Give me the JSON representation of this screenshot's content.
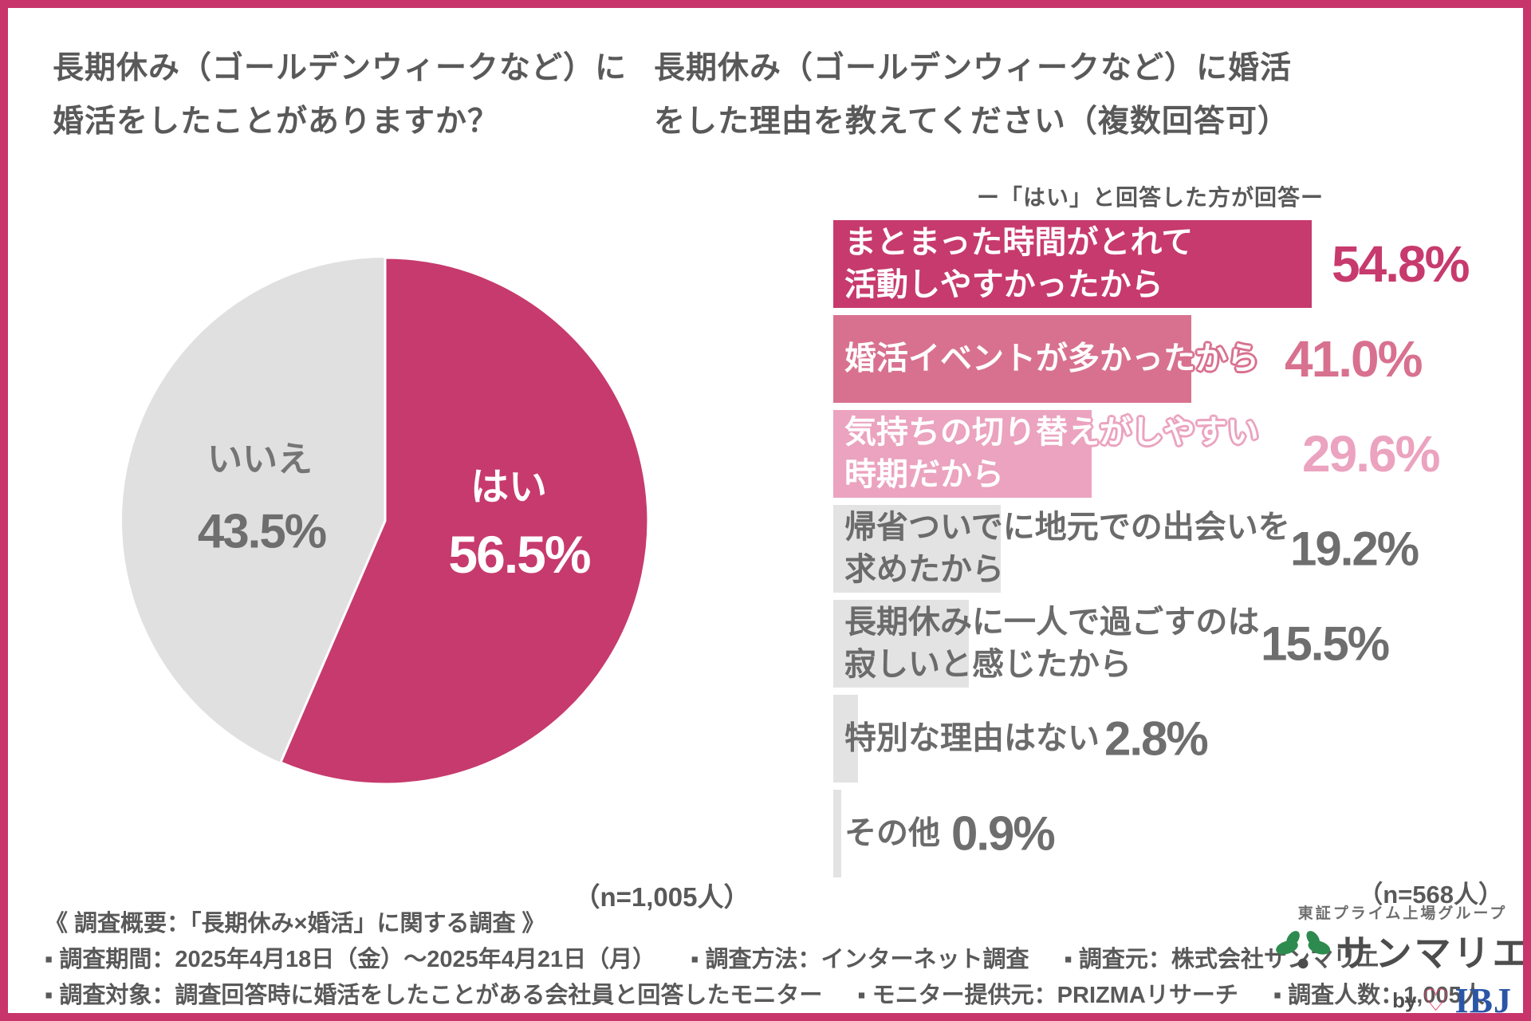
{
  "page": {
    "background": "#ffffff",
    "border_color": "#c8356b"
  },
  "left_section": {
    "title_lines": [
      "長期休み（ゴールデンウィークなど）に",
      "婚活をしたことがありますか？"
    ]
  },
  "right_section": {
    "title_lines": [
      "長期休み（ゴールデンウィークなど）に婚活",
      "をした理由を教えてください（複数回答可）"
    ]
  },
  "chart_data": [
    {
      "type": "pie",
      "title": "長期休み（ゴールデンウィークなど）に婚活をしたことがありますか？",
      "unit": "%",
      "start_angle_deg": 0,
      "clockwise": true,
      "legend": "labels-inside",
      "slices": [
        {
          "label": "はい",
          "value": 56.5,
          "display": "56.5%",
          "color": "#c73a6d",
          "text_color": "#ffffff"
        },
        {
          "label": "いいえ",
          "value": 43.5,
          "display": "43.5%",
          "color": "#e0e0e0",
          "text_color": "#757575"
        }
      ],
      "n": "（n=1,005人）"
    },
    {
      "type": "bar",
      "orientation": "horizontal",
      "title": "長期休み（ゴールデンウィークなど）に婚活をした理由を教えてください（複数回答可）",
      "subtitle": "ー「はい」と回答した方が回答ー",
      "unit": "%",
      "xlim": [
        0,
        60
      ],
      "grid": false,
      "value_labels": "right-of-label",
      "bars": [
        {
          "label_lines": [
            "まとまった時間がとれて",
            "活動しやすかったから"
          ],
          "value": 54.8,
          "display": "54.8%",
          "bar_color": "#c73a6d",
          "label_style": "white",
          "value_color": "#c73a6d"
        },
        {
          "label_lines": [
            "婚活イベントが多かったから"
          ],
          "value": 41.0,
          "display": "41.0%",
          "bar_color": "#d8718f",
          "label_style": "white-outline",
          "value_color": "#d8718f"
        },
        {
          "label_lines": [
            "気持ちの切り替えがしやすい",
            "時期だから"
          ],
          "value": 29.6,
          "display": "29.6%",
          "bar_color": "#eba3bf",
          "label_style": "white-outline",
          "value_color": "#eba3bf"
        },
        {
          "label_lines": [
            "帰省ついでに地元での出会いを",
            "求めたから"
          ],
          "value": 19.2,
          "display": "19.2%",
          "bar_color": "#e3e3e3",
          "label_style": "gray",
          "value_color": "#6e6e6e"
        },
        {
          "label_lines": [
            "長期休みに一人で過ごすのは",
            "寂しいと感じたから"
          ],
          "value": 15.5,
          "display": "15.5%",
          "bar_color": "#e3e3e3",
          "label_style": "gray",
          "value_color": "#6e6e6e"
        },
        {
          "label_lines": [
            "特別な理由はない"
          ],
          "value": 2.8,
          "display": "2.8%",
          "bar_color": "#e3e3e3",
          "label_style": "gray",
          "value_color": "#6e6e6e"
        },
        {
          "label_lines": [
            "その他"
          ],
          "value": 0.9,
          "display": "0.9%",
          "bar_color": "#e3e3e3",
          "label_style": "gray",
          "value_color": "#6e6e6e"
        }
      ],
      "n": "（n=568人）"
    }
  ],
  "footer": {
    "overview_title": "《 調査概要：「長期休み×婚活」に関する調査 》",
    "rows": [
      [
        "▪ 調査期間：2025年4月18日（金）～2025年4月21日（月）",
        "▪ 調査方法：インターネット調査",
        "▪ 調査元：株式会社サンマリエ"
      ],
      [
        "▪ 調査対象：調査回答時に婚活をしたことがある会社員と回答したモニター",
        "▪ モニター提供元：PRIZMAリサーチ",
        "▪ 調査人数：1,005人"
      ]
    ],
    "logo": {
      "group_label": "東証プライム上場グループ",
      "brand": "サンマリエ",
      "by": "by",
      "ibj": "IBJ",
      "leaf_green": "#2e8b4f",
      "dot_gray": "#4d4d4d",
      "heart_pink": "#e8476f",
      "ibj_blue": "#2b56a7"
    }
  }
}
